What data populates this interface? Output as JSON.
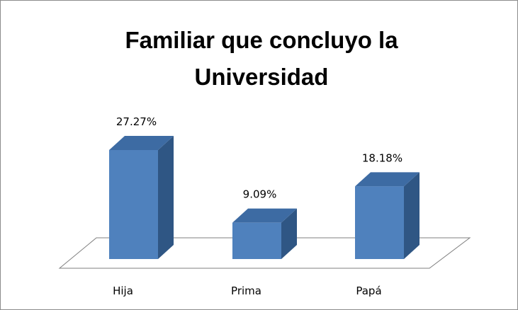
{
  "chart_data": {
    "type": "bar",
    "title": "Familiar que concluyo la Universidad",
    "categories": [
      "Hija",
      "Prima",
      "Papá"
    ],
    "values": [
      27.27,
      9.09,
      18.18
    ],
    "value_labels": [
      "27.27%",
      "9.09%",
      "18.18%"
    ],
    "color": "#4f81bd"
  }
}
